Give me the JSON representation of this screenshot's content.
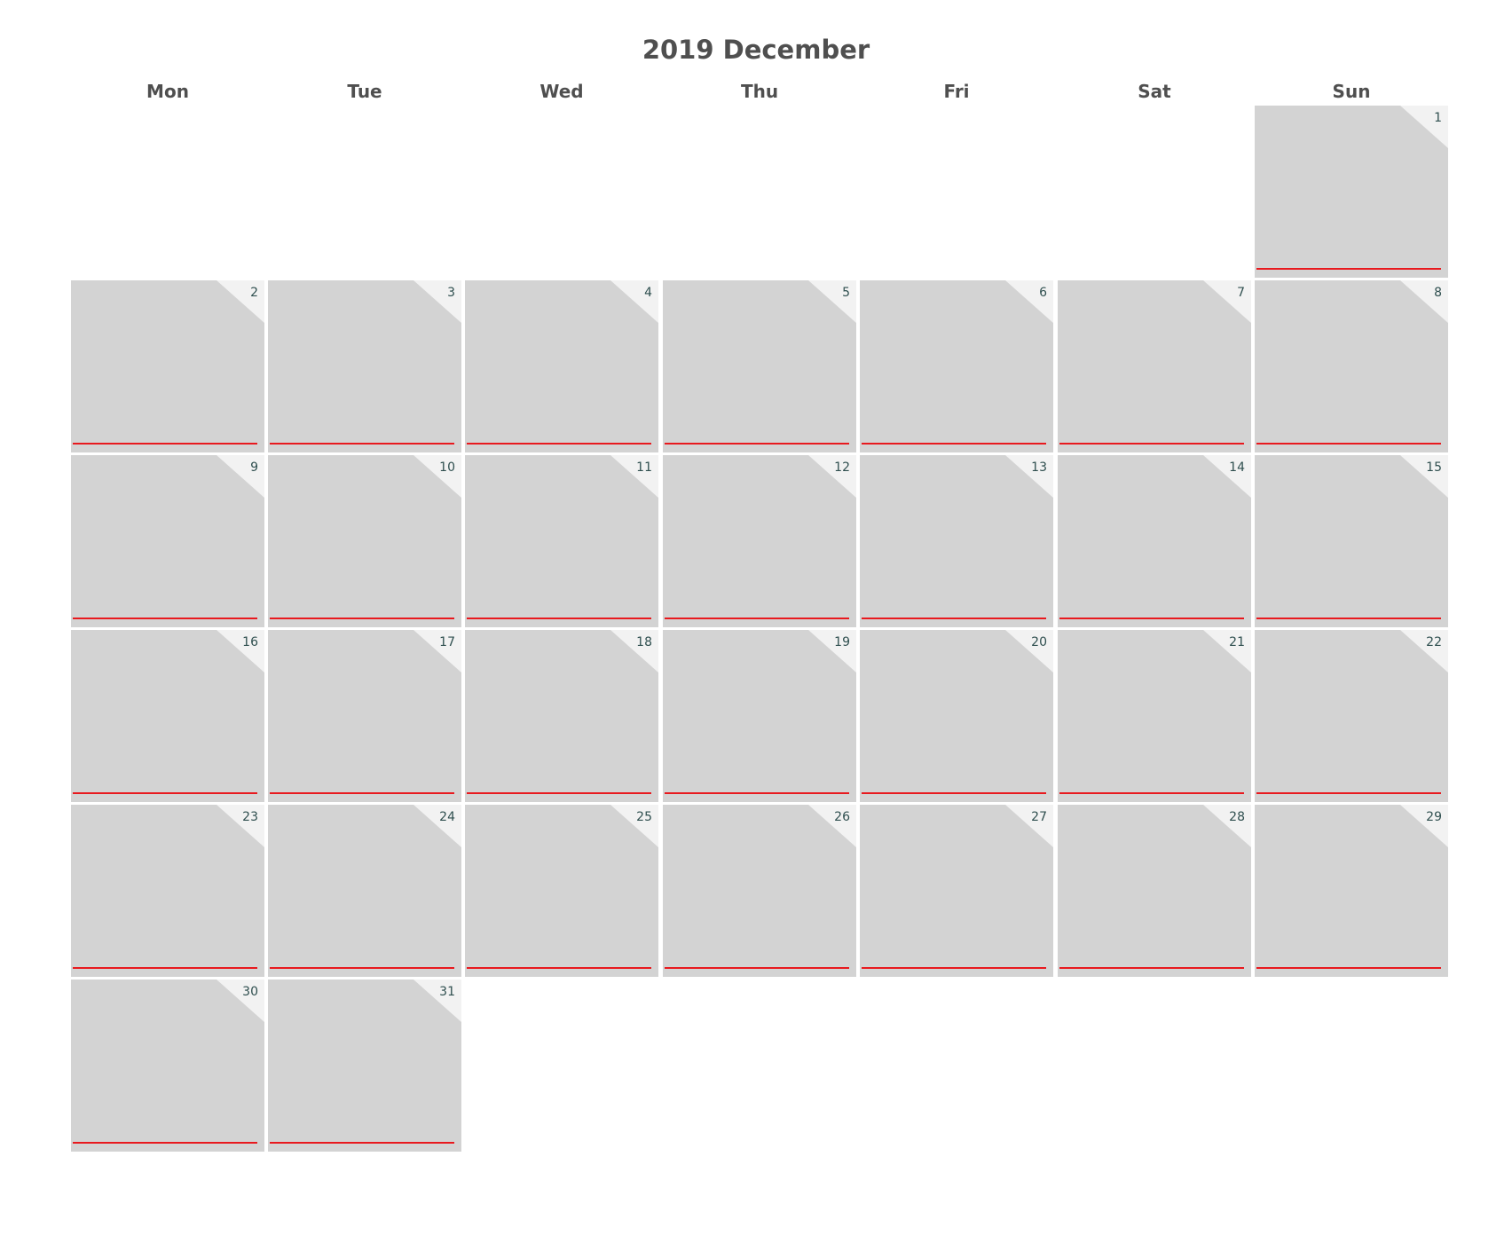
{
  "calendar": {
    "title": "2019 December",
    "weekdays": [
      "Mon",
      "Tue",
      "Wed",
      "Thu",
      "Fri",
      "Sat",
      "Sun"
    ],
    "first_weekday_index": 6,
    "days": [
      "1",
      "2",
      "3",
      "4",
      "5",
      "6",
      "7",
      "8",
      "9",
      "10",
      "11",
      "12",
      "13",
      "14",
      "15",
      "16",
      "17",
      "18",
      "19",
      "20",
      "21",
      "22",
      "23",
      "24",
      "25",
      "26",
      "27",
      "28",
      "29",
      "30",
      "31"
    ],
    "colors": {
      "cell": "#d3d3d3",
      "corner": "#f2f2f2",
      "underline": "#e8191e",
      "day_number": "#2f4f4f",
      "header_text": "#4f4f4f"
    }
  }
}
